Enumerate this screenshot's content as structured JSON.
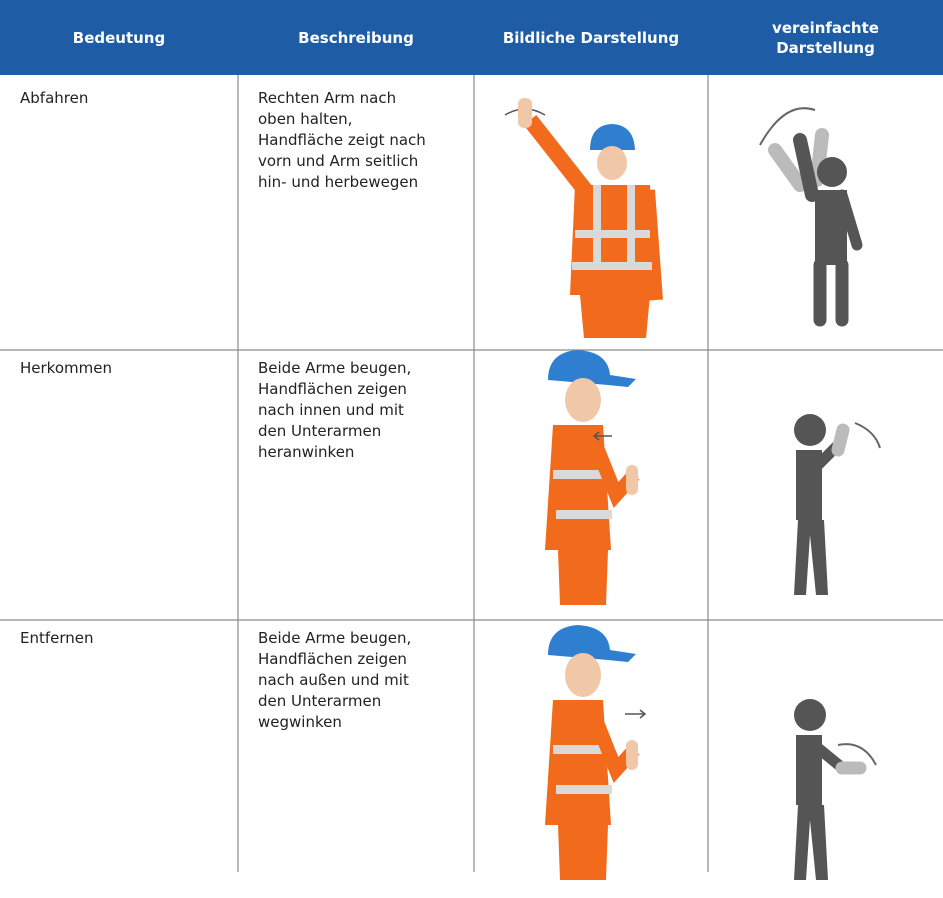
{
  "table": {
    "header": [
      [
        "Bedeutung"
      ],
      [
        "Beschreibung"
      ],
      [
        "Bildliche Darstellung"
      ],
      [
        "vereinfachte",
        "Darstellung"
      ]
    ],
    "rows": [
      {
        "meaning": "Abfahren",
        "description": [
          "Rechten Arm nach",
          "oben halten,",
          "Handfläche zeigt nach",
          "vorn und Arm seitlich",
          "hin- und herbewegen"
        ]
      },
      {
        "meaning": "Herkommen",
        "description": [
          "Beide Arme beugen,",
          "Handflächen  zeigen",
          "nach innen und mit",
          "den Unterarmen",
          "heranwinken"
        ]
      },
      {
        "meaning": "Entfernen",
        "description": [
          "Beide Arme beugen,",
          "Handflächen zeigen",
          "nach außen und mit",
          "den Unterarmen",
          "wegwinken"
        ]
      }
    ]
  }
}
